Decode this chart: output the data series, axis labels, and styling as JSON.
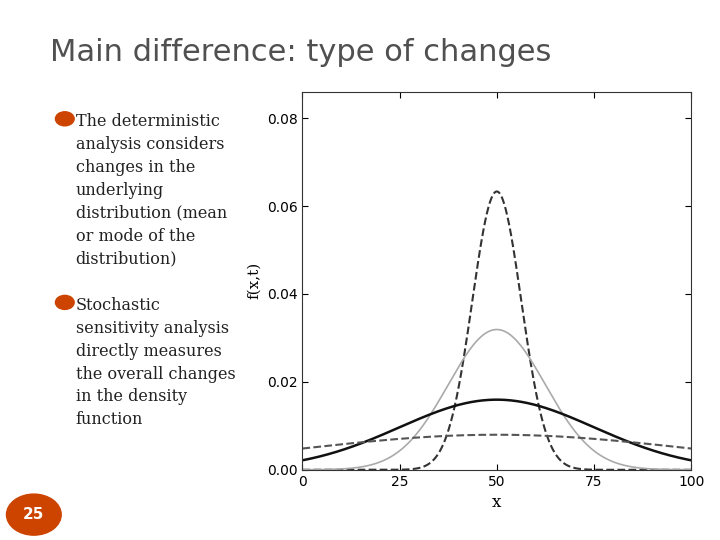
{
  "title": "Main difference: type of changes",
  "title_color": "#505050",
  "title_fontsize": 22,
  "bg_color": "#ffffff",
  "border_color": "#cccccc",
  "bullet_color": "#cc4400",
  "bullet1_lines": [
    "The deterministic\nanalysis considers\nchanges in the\nunderlying\ndistribution (mean\nor mode of the\ndistribution)"
  ],
  "bullet2_lines": [
    "Stochastic\nsensitivity analysis\ndirectly measures\nthe overall changes\nin the density\nfunction"
  ],
  "page_num": "25",
  "page_num_bg": "#cc4400",
  "curves": [
    {
      "mu": 50,
      "sigma": 6.3,
      "style": "dashed",
      "color": "#333333",
      "lw": 1.5
    },
    {
      "mu": 50,
      "sigma": 12.5,
      "style": "solid",
      "color": "#aaaaaa",
      "lw": 1.2
    },
    {
      "mu": 50,
      "sigma": 25.0,
      "style": "solid",
      "color": "#111111",
      "lw": 1.8
    },
    {
      "mu": 50,
      "sigma": 50.0,
      "style": "dashed",
      "color": "#555555",
      "lw": 1.5
    }
  ],
  "xlim": [
    0,
    100
  ],
  "ylim": [
    0,
    0.086
  ],
  "xticks": [
    0,
    25,
    50,
    75,
    100
  ],
  "yticks": [
    0,
    0.02,
    0.04,
    0.06,
    0.08
  ],
  "xlabel": "x",
  "ylabel": "f(x,t)",
  "text_color": "#222222",
  "text_fontsize": 11.5
}
